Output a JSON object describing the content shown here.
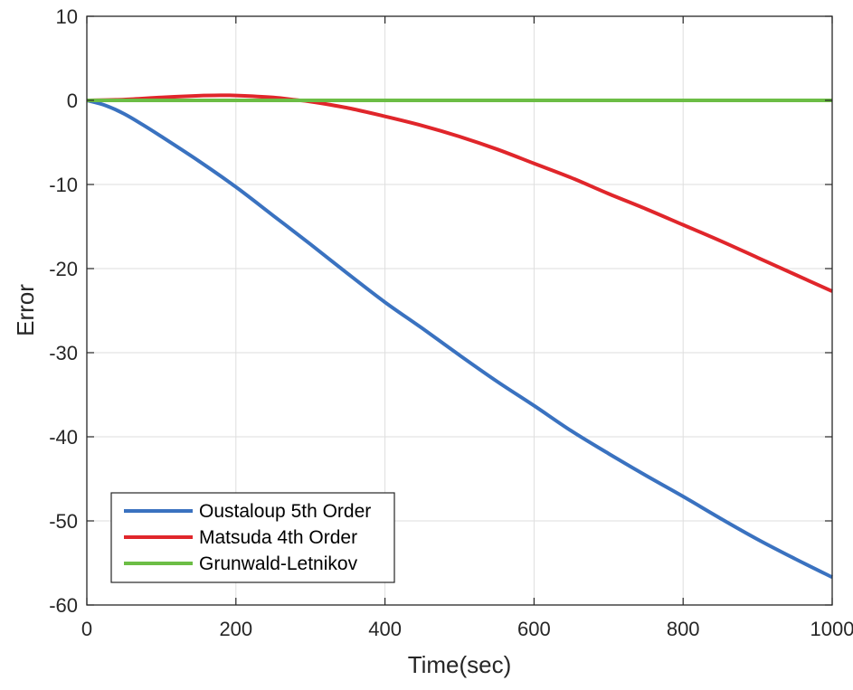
{
  "chart_data": {
    "type": "line",
    "xlabel": "Time(sec)",
    "ylabel": "Error",
    "xlim": [
      0,
      1000
    ],
    "ylim": [
      -60,
      10
    ],
    "xticks": [
      0,
      200,
      400,
      600,
      800,
      1000
    ],
    "yticks": [
      10,
      0,
      -10,
      -20,
      -30,
      -40,
      -50,
      -60
    ],
    "grid": true,
    "legend_position": "bottom-left",
    "series": [
      {
        "name": "Oustaloup 5th Order",
        "color": "#3a72c0",
        "x": [
          0,
          25,
          50,
          75,
          100,
          150,
          200,
          250,
          300,
          350,
          400,
          450,
          500,
          550,
          600,
          650,
          700,
          750,
          800,
          850,
          900,
          950,
          1000
        ],
        "y": [
          0,
          -0.6,
          -1.6,
          -2.9,
          -4.3,
          -7.2,
          -10.3,
          -13.7,
          -17.1,
          -20.6,
          -24.0,
          -27.1,
          -30.3,
          -33.4,
          -36.3,
          -39.3,
          -42.0,
          -44.6,
          -47.1,
          -49.7,
          -52.2,
          -54.5,
          -56.7
        ]
      },
      {
        "name": "Matsuda 4th Order",
        "color": "#e0262b",
        "x": [
          0,
          50,
          100,
          150,
          180,
          200,
          250,
          280,
          300,
          350,
          400,
          450,
          500,
          550,
          600,
          650,
          700,
          750,
          800,
          850,
          900,
          950,
          1000
        ],
        "y": [
          0,
          0.1,
          0.35,
          0.55,
          0.6,
          0.58,
          0.35,
          0.05,
          -0.15,
          -0.9,
          -1.9,
          -3.0,
          -4.3,
          -5.8,
          -7.5,
          -9.2,
          -11.1,
          -12.9,
          -14.8,
          -16.7,
          -18.7,
          -20.7,
          -22.7
        ]
      },
      {
        "name": "Grunwald-Letnikov",
        "color": "#6cbd45",
        "x": [
          0,
          100,
          200,
          300,
          400,
          500,
          600,
          700,
          800,
          900,
          1000
        ],
        "y": [
          0,
          0,
          0,
          0,
          0,
          0,
          0,
          0,
          0,
          0,
          0
        ]
      }
    ]
  }
}
